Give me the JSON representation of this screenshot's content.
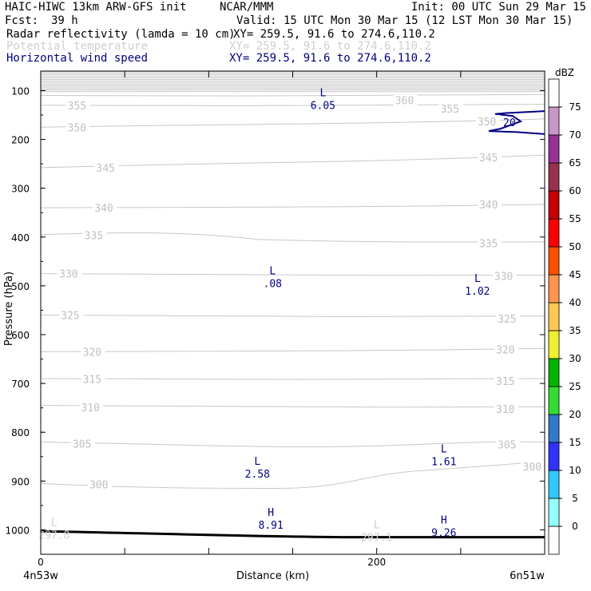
{
  "header": {
    "left_title": "HAIC-HIWC 13km ARW-GFS init",
    "center_title": "NCAR/MMM",
    "init": "Init: 00 UTC Sun 29 Mar 15",
    "fcst_label": "Fcst:",
    "fcst_value": "39 h",
    "valid": "Valid: 15 UTC Mon 30 Mar 15 (12 LST Mon 30 Mar 15)",
    "fields": [
      {
        "name": "Radar reflectivity (lamda = 10 cm)",
        "xy": "XY= 259.5, 91.6 to 274.6,110.2",
        "color": "#000000"
      },
      {
        "name": "Potential temperature",
        "xy": "XY= 259.5, 91.6 to 274.6,110.2",
        "color": "#cfcfcf"
      },
      {
        "name": "Horizontal wind speed",
        "xy": "XY= 259.5, 91.6 to 274.6,110.2",
        "color": "#000080"
      }
    ]
  },
  "chart_data": {
    "type": "cross-section contour",
    "xlabel": "Distance (km)",
    "ylabel": "Pressure (hPa)",
    "x_ticks": [
      "0",
      "200"
    ],
    "x_endpoints": [
      "4n53w",
      "6n51w"
    ],
    "xlim": [
      0,
      300
    ],
    "ylim": [
      1050,
      60
    ],
    "y_ticks": [
      100,
      200,
      300,
      400,
      500,
      600,
      700,
      800,
      900,
      1000
    ],
    "colorbar": {
      "title": "dBZ",
      "levels": [
        "0",
        "5",
        "10",
        "15",
        "20",
        "25",
        "30",
        "35",
        "40",
        "45",
        "50",
        "55",
        "60",
        "65",
        "70",
        "75"
      ],
      "colors": [
        "#ffffff",
        "#96ffff",
        "#32c8ff",
        "#3232ff",
        "#3278c8",
        "#32dc32",
        "#00b400",
        "#f0f032",
        "#ffc850",
        "#ff9650",
        "#ff5000",
        "#ff0000",
        "#c80000",
        "#963250",
        "#963296",
        "#c896c8",
        "#ffffff"
      ]
    },
    "theta_contours": [
      {
        "label": "300",
        "p_left": 905,
        "p_right": 860
      },
      {
        "label": "305",
        "p_left": 820,
        "p_right": 820
      },
      {
        "label": "310",
        "p_left": 745,
        "p_right": 748
      },
      {
        "label": "315",
        "p_left": 690,
        "p_right": 690
      },
      {
        "label": "320",
        "p_left": 635,
        "p_right": 628
      },
      {
        "label": "325",
        "p_left": 560,
        "p_right": 562
      },
      {
        "label": "330",
        "p_left": 475,
        "p_right": 478
      },
      {
        "label": "335",
        "p_left": 395,
        "p_right": 410
      },
      {
        "label": "340",
        "p_left": 340,
        "p_right": 333
      },
      {
        "label": "345",
        "p_left": 258,
        "p_right": 232
      },
      {
        "label": "350",
        "p_left": 175,
        "p_right": 158
      },
      {
        "label": "355",
        "p_left": 130,
        "p_right": 128
      },
      {
        "label": "360",
        "p_left": 110,
        "p_right": 108
      }
    ],
    "theta_labels": [
      {
        "text": "355",
        "x_km": 16,
        "p": 130
      },
      {
        "text": "360",
        "x_km": 211,
        "p": 120
      },
      {
        "text": "355",
        "x_km": 238,
        "p": 137
      },
      {
        "text": "350",
        "x_km": 16,
        "p": 175
      },
      {
        "text": "350",
        "x_km": 260,
        "p": 163
      },
      {
        "text": "345",
        "x_km": 33,
        "p": 258
      },
      {
        "text": "345",
        "x_km": 261,
        "p": 237
      },
      {
        "text": "340",
        "x_km": 32,
        "p": 340
      },
      {
        "text": "340",
        "x_km": 261,
        "p": 333
      },
      {
        "text": "335",
        "x_km": 26,
        "p": 396
      },
      {
        "text": "335",
        "x_km": 261,
        "p": 413
      },
      {
        "text": "330",
        "x_km": 11,
        "p": 475
      },
      {
        "text": "330",
        "x_km": 270,
        "p": 480
      },
      {
        "text": "325",
        "x_km": 12,
        "p": 560
      },
      {
        "text": "325",
        "x_km": 272,
        "p": 567
      },
      {
        "text": "320",
        "x_km": 25,
        "p": 635
      },
      {
        "text": "320",
        "x_km": 271,
        "p": 630
      },
      {
        "text": "315",
        "x_km": 25,
        "p": 691
      },
      {
        "text": "315",
        "x_km": 271,
        "p": 695
      },
      {
        "text": "310",
        "x_km": 24,
        "p": 749
      },
      {
        "text": "310",
        "x_km": 271,
        "p": 752
      },
      {
        "text": "305",
        "x_km": 19,
        "p": 823
      },
      {
        "text": "305",
        "x_km": 272,
        "p": 825
      },
      {
        "text": "300",
        "x_km": 29,
        "p": 907
      },
      {
        "text": "300",
        "x_km": 287,
        "p": 870
      }
    ],
    "extrema": [
      {
        "kind": "L",
        "value": "6.05",
        "x_km": 168,
        "p": 115,
        "color": "#000080"
      },
      {
        "kind": "L",
        "value": ".08",
        "x_km": 138,
        "p": 480,
        "color": "#000080"
      },
      {
        "kind": "L",
        "value": "1.02",
        "x_km": 260,
        "p": 495,
        "color": "#000080"
      },
      {
        "kind": "L",
        "value": "2.58",
        "x_km": 129,
        "p": 870,
        "color": "#000080"
      },
      {
        "kind": "L",
        "value": "1.61",
        "x_km": 240,
        "p": 845,
        "color": "#000080"
      },
      {
        "kind": "H",
        "value": "8.91",
        "x_km": 137,
        "p": 975,
        "color": "#000080"
      },
      {
        "kind": "H",
        "value": "9.26",
        "x_km": 240,
        "p": 990,
        "color": "#000080"
      },
      {
        "kind": "L",
        "value": "297.8",
        "x_km": 8,
        "p": 995,
        "color": "#cfcfcf"
      },
      {
        "kind": "L",
        "value": "297.1",
        "x_km": 200,
        "p": 1000,
        "color": "#cfcfcf"
      }
    ],
    "wind_contour_label": "20",
    "terrain_p_left": 1003,
    "terrain_p_right": 1015
  }
}
